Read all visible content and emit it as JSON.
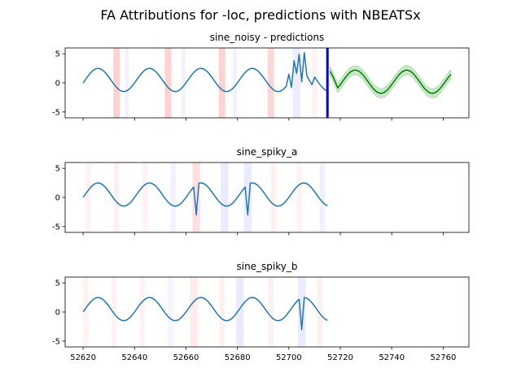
{
  "figure_title": "FA Attributions for -loc, predictions with NBEATSx",
  "chart_data": [
    {
      "type": "line",
      "title": "sine_noisy - predictions",
      "xlim": [
        52613,
        52770
      ],
      "ylim": [
        -6,
        6
      ],
      "yticks": [
        5,
        0,
        -5
      ],
      "xticks": [
        52620,
        52640,
        52660,
        52680,
        52700,
        52720,
        52740,
        52760
      ],
      "show_xtick_labels": false,
      "series": [
        {
          "kind": "sine",
          "x_start": 52620,
          "x_end": 52715,
          "amplitude": 2,
          "period": 20,
          "phase_x": 52620,
          "offset_y": 0.5,
          "color": "#1f77b4",
          "overrides": [
            [
              52700,
              1.5
            ],
            [
              52701,
              -0.8
            ],
            [
              52702,
              3.8
            ],
            [
              52703,
              1.6
            ],
            [
              52704,
              4.9
            ],
            [
              52705,
              0.2
            ],
            [
              52706,
              5.2
            ],
            [
              52707,
              1.2
            ],
            [
              52708,
              0.4
            ],
            [
              52709,
              -0.3
            ]
          ]
        },
        {
          "kind": "sine",
          "x_start": 52716,
          "x_end": 52763,
          "amplitude": 2,
          "period": 20,
          "phase_x": 52620,
          "offset_y": 0.2,
          "color": "#008000",
          "band_halfwidth": 0.8,
          "band_color": "#2ca02c",
          "overrides": [
            [
              52716,
              2.0
            ],
            [
              52717,
              1.2
            ],
            [
              52718,
              0.2
            ]
          ]
        }
      ],
      "vlines": [
        {
          "x": 52715,
          "color": "#0000ff"
        }
      ],
      "attribution_bands": [
        {
          "x": 52633,
          "width": 2.5,
          "color": "#ff0000",
          "alpha": 0.18
        },
        {
          "x": 52653,
          "width": 2.5,
          "color": "#ff0000",
          "alpha": 0.18
        },
        {
          "x": 52674,
          "width": 2.5,
          "color": "#ff0000",
          "alpha": 0.18
        },
        {
          "x": 52693,
          "width": 2.5,
          "color": "#ff0000",
          "alpha": 0.16
        },
        {
          "x": 52637,
          "width": 1.5,
          "color": "#0000ff",
          "alpha": 0.05
        },
        {
          "x": 52659,
          "width": 1.5,
          "color": "#0000ff",
          "alpha": 0.05
        },
        {
          "x": 52679,
          "width": 1.5,
          "color": "#0000ff",
          "alpha": 0.05
        },
        {
          "x": 52703,
          "width": 3,
          "color": "#0000ff",
          "alpha": 0.07
        },
        {
          "x": 52710,
          "width": 2,
          "color": "#ff0000",
          "alpha": 0.05
        }
      ]
    },
    {
      "type": "line",
      "title": "sine_spiky_a",
      "xlim": [
        52613,
        52770
      ],
      "ylim": [
        -6,
        6
      ],
      "yticks": [
        5,
        0,
        -5
      ],
      "xticks": [
        52620,
        52640,
        52660,
        52680,
        52700,
        52720,
        52740,
        52760
      ],
      "show_xtick_labels": false,
      "series": [
        {
          "kind": "sine",
          "x_start": 52620,
          "x_end": 52715,
          "amplitude": 2,
          "period": 20,
          "phase_x": 52620,
          "offset_y": 0.5,
          "color": "#1f77b4",
          "overrides": [
            [
              52664,
              -3.0
            ],
            [
              52684,
              -3.0
            ]
          ]
        }
      ],
      "vlines": [],
      "attribution_bands": [
        {
          "x": 52622,
          "width": 2,
          "color": "#ff0000",
          "alpha": 0.05
        },
        {
          "x": 52633,
          "width": 2,
          "color": "#ff0000",
          "alpha": 0.06
        },
        {
          "x": 52644,
          "width": 2,
          "color": "#ff0000",
          "alpha": 0.05
        },
        {
          "x": 52655,
          "width": 2,
          "color": "#0000ff",
          "alpha": 0.05
        },
        {
          "x": 52664,
          "width": 3,
          "color": "#ff0000",
          "alpha": 0.12
        },
        {
          "x": 52675,
          "width": 3,
          "color": "#0000ff",
          "alpha": 0.08
        },
        {
          "x": 52684,
          "width": 3,
          "color": "#0000ff",
          "alpha": 0.08
        },
        {
          "x": 52694,
          "width": 2,
          "color": "#ff0000",
          "alpha": 0.06
        },
        {
          "x": 52704,
          "width": 2,
          "color": "#ff0000",
          "alpha": 0.05
        },
        {
          "x": 52713,
          "width": 2,
          "color": "#0000ff",
          "alpha": 0.06
        }
      ]
    },
    {
      "type": "line",
      "title": "sine_spiky_b",
      "xlim": [
        52613,
        52770
      ],
      "ylim": [
        -6,
        6
      ],
      "yticks": [
        5,
        0,
        -5
      ],
      "xticks": [
        52620,
        52640,
        52660,
        52680,
        52700,
        52720,
        52740,
        52760
      ],
      "show_xtick_labels": true,
      "series": [
        {
          "kind": "sine",
          "x_start": 52620,
          "x_end": 52715,
          "amplitude": 2,
          "period": 20,
          "phase_x": 52620,
          "offset_y": 0.5,
          "color": "#1f77b4",
          "overrides": [
            [
              52705,
              -3.0
            ]
          ]
        }
      ],
      "vlines": [],
      "attribution_bands": [
        {
          "x": 52621,
          "width": 2,
          "color": "#ff0000",
          "alpha": 0.05
        },
        {
          "x": 52632,
          "width": 2,
          "color": "#ff0000",
          "alpha": 0.05
        },
        {
          "x": 52643,
          "width": 2,
          "color": "#ff0000",
          "alpha": 0.05
        },
        {
          "x": 52654,
          "width": 2,
          "color": "#0000ff",
          "alpha": 0.04
        },
        {
          "x": 52663,
          "width": 3,
          "color": "#ff0000",
          "alpha": 0.08
        },
        {
          "x": 52674,
          "width": 2,
          "color": "#ff0000",
          "alpha": 0.06
        },
        {
          "x": 52681,
          "width": 3,
          "color": "#0000ff",
          "alpha": 0.08
        },
        {
          "x": 52693,
          "width": 2,
          "color": "#ff0000",
          "alpha": 0.06
        },
        {
          "x": 52705,
          "width": 3,
          "color": "#0000ff",
          "alpha": 0.08
        },
        {
          "x": 52712,
          "width": 2,
          "color": "#ff0000",
          "alpha": 0.06
        }
      ]
    }
  ]
}
